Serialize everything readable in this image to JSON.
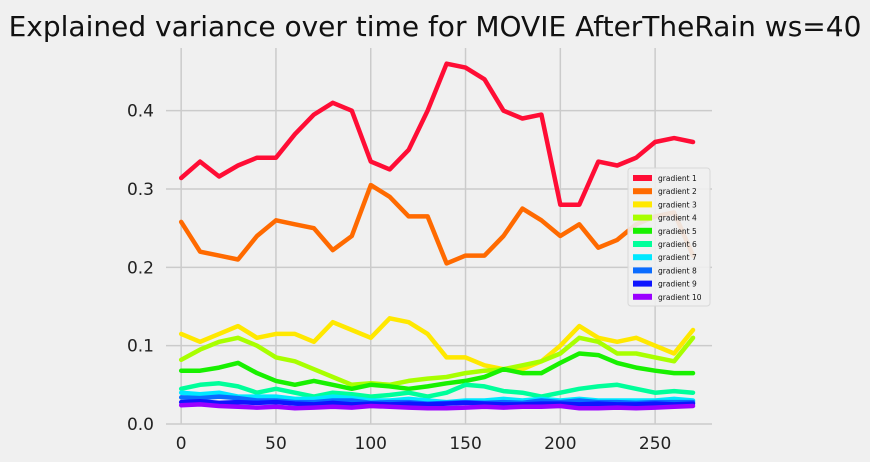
{
  "chart_data": {
    "type": "line",
    "title": "Explained variance over time for MOVIE AfterTheRain ws=40",
    "xlabel": "",
    "ylabel": "",
    "xlim": [
      -8,
      280
    ],
    "ylim": [
      0,
      0.48
    ],
    "x_ticks": [
      0,
      50,
      100,
      150,
      200,
      250
    ],
    "y_ticks": [
      0.0,
      0.1,
      0.2,
      0.3,
      0.4
    ],
    "x_tick_labels": [
      "0",
      "50",
      "100",
      "150",
      "200",
      "250"
    ],
    "y_tick_labels": [
      "0.0",
      "0.1",
      "0.2",
      "0.3",
      "0.4"
    ],
    "grid": true,
    "legend_position": "center-right",
    "x": [
      0,
      10,
      20,
      30,
      40,
      50,
      60,
      70,
      80,
      90,
      100,
      110,
      120,
      130,
      140,
      150,
      160,
      170,
      180,
      190,
      200,
      210,
      220,
      230,
      240,
      250,
      260,
      270
    ],
    "series": [
      {
        "name": "gradient 1",
        "color": "#ff0d35",
        "values": [
          0.314,
          0.335,
          0.316,
          0.33,
          0.34,
          0.34,
          0.37,
          0.395,
          0.41,
          0.4,
          0.335,
          0.325,
          0.35,
          0.4,
          0.46,
          0.455,
          0.44,
          0.4,
          0.39,
          0.395,
          0.28,
          0.28,
          0.335,
          0.33,
          0.34,
          0.36,
          0.365,
          0.36
        ]
      },
      {
        "name": "gradient 2",
        "color": "#ff6a00",
        "values": [
          0.258,
          0.22,
          0.215,
          0.21,
          0.24,
          0.26,
          0.255,
          0.25,
          0.222,
          0.24,
          0.305,
          0.29,
          0.265,
          0.265,
          0.205,
          0.215,
          0.215,
          0.24,
          0.275,
          0.26,
          0.24,
          0.255,
          0.225,
          0.235,
          0.255,
          0.265,
          0.27,
          0.215
        ]
      },
      {
        "name": "gradient 3",
        "color": "#ffe800",
        "values": [
          0.115,
          0.105,
          0.115,
          0.125,
          0.11,
          0.115,
          0.115,
          0.105,
          0.13,
          0.12,
          0.11,
          0.135,
          0.13,
          0.115,
          0.085,
          0.085,
          0.075,
          0.07,
          0.07,
          0.08,
          0.1,
          0.125,
          0.11,
          0.105,
          0.11,
          0.1,
          0.09,
          0.12
        ]
      },
      {
        "name": "gradient 4",
        "color": "#a8ff00",
        "values": [
          0.082,
          0.095,
          0.105,
          0.11,
          0.1,
          0.085,
          0.08,
          0.07,
          0.06,
          0.05,
          0.052,
          0.05,
          0.055,
          0.058,
          0.06,
          0.065,
          0.068,
          0.07,
          0.075,
          0.08,
          0.09,
          0.11,
          0.105,
          0.09,
          0.09,
          0.085,
          0.08,
          0.11
        ]
      },
      {
        "name": "gradient 5",
        "color": "#18f000",
        "values": [
          0.068,
          0.068,
          0.072,
          0.078,
          0.065,
          0.055,
          0.05,
          0.055,
          0.05,
          0.045,
          0.05,
          0.048,
          0.045,
          0.048,
          0.052,
          0.055,
          0.06,
          0.07,
          0.065,
          0.065,
          0.078,
          0.09,
          0.088,
          0.078,
          0.072,
          0.068,
          0.065,
          0.065
        ]
      },
      {
        "name": "gradient 6",
        "color": "#00ff9a",
        "values": [
          0.045,
          0.05,
          0.052,
          0.048,
          0.04,
          0.045,
          0.04,
          0.035,
          0.04,
          0.038,
          0.035,
          0.037,
          0.04,
          0.035,
          0.04,
          0.05,
          0.048,
          0.042,
          0.04,
          0.035,
          0.04,
          0.045,
          0.048,
          0.05,
          0.045,
          0.04,
          0.042,
          0.04
        ]
      },
      {
        "name": "gradient 7",
        "color": "#00e8ff",
        "values": [
          0.04,
          0.038,
          0.04,
          0.035,
          0.035,
          0.035,
          0.032,
          0.032,
          0.035,
          0.033,
          0.03,
          0.03,
          0.032,
          0.03,
          0.028,
          0.03,
          0.03,
          0.032,
          0.03,
          0.032,
          0.03,
          0.032,
          0.03,
          0.03,
          0.03,
          0.03,
          0.032,
          0.03
        ]
      },
      {
        "name": "gradient 8",
        "color": "#0a6cff",
        "values": [
          0.034,
          0.033,
          0.035,
          0.033,
          0.03,
          0.03,
          0.028,
          0.028,
          0.03,
          0.03,
          0.027,
          0.028,
          0.028,
          0.026,
          0.027,
          0.028,
          0.027,
          0.028,
          0.027,
          0.03,
          0.028,
          0.03,
          0.028,
          0.028,
          0.027,
          0.028,
          0.028,
          0.028
        ]
      },
      {
        "name": "gradient 9",
        "color": "#0e14ff",
        "values": [
          0.028,
          0.029,
          0.027,
          0.028,
          0.027,
          0.028,
          0.026,
          0.025,
          0.027,
          0.025,
          0.026,
          0.025,
          0.026,
          0.025,
          0.026,
          0.027,
          0.026,
          0.025,
          0.025,
          0.026,
          0.026,
          0.025,
          0.026,
          0.025,
          0.025,
          0.026,
          0.025,
          0.026
        ]
      },
      {
        "name": "gradient 10",
        "color": "#9b00ff",
        "values": [
          0.024,
          0.025,
          0.023,
          0.022,
          0.021,
          0.022,
          0.02,
          0.021,
          0.022,
          0.021,
          0.023,
          0.022,
          0.021,
          0.02,
          0.02,
          0.021,
          0.022,
          0.021,
          0.022,
          0.022,
          0.023,
          0.02,
          0.02,
          0.021,
          0.02,
          0.021,
          0.022,
          0.023
        ]
      }
    ]
  }
}
